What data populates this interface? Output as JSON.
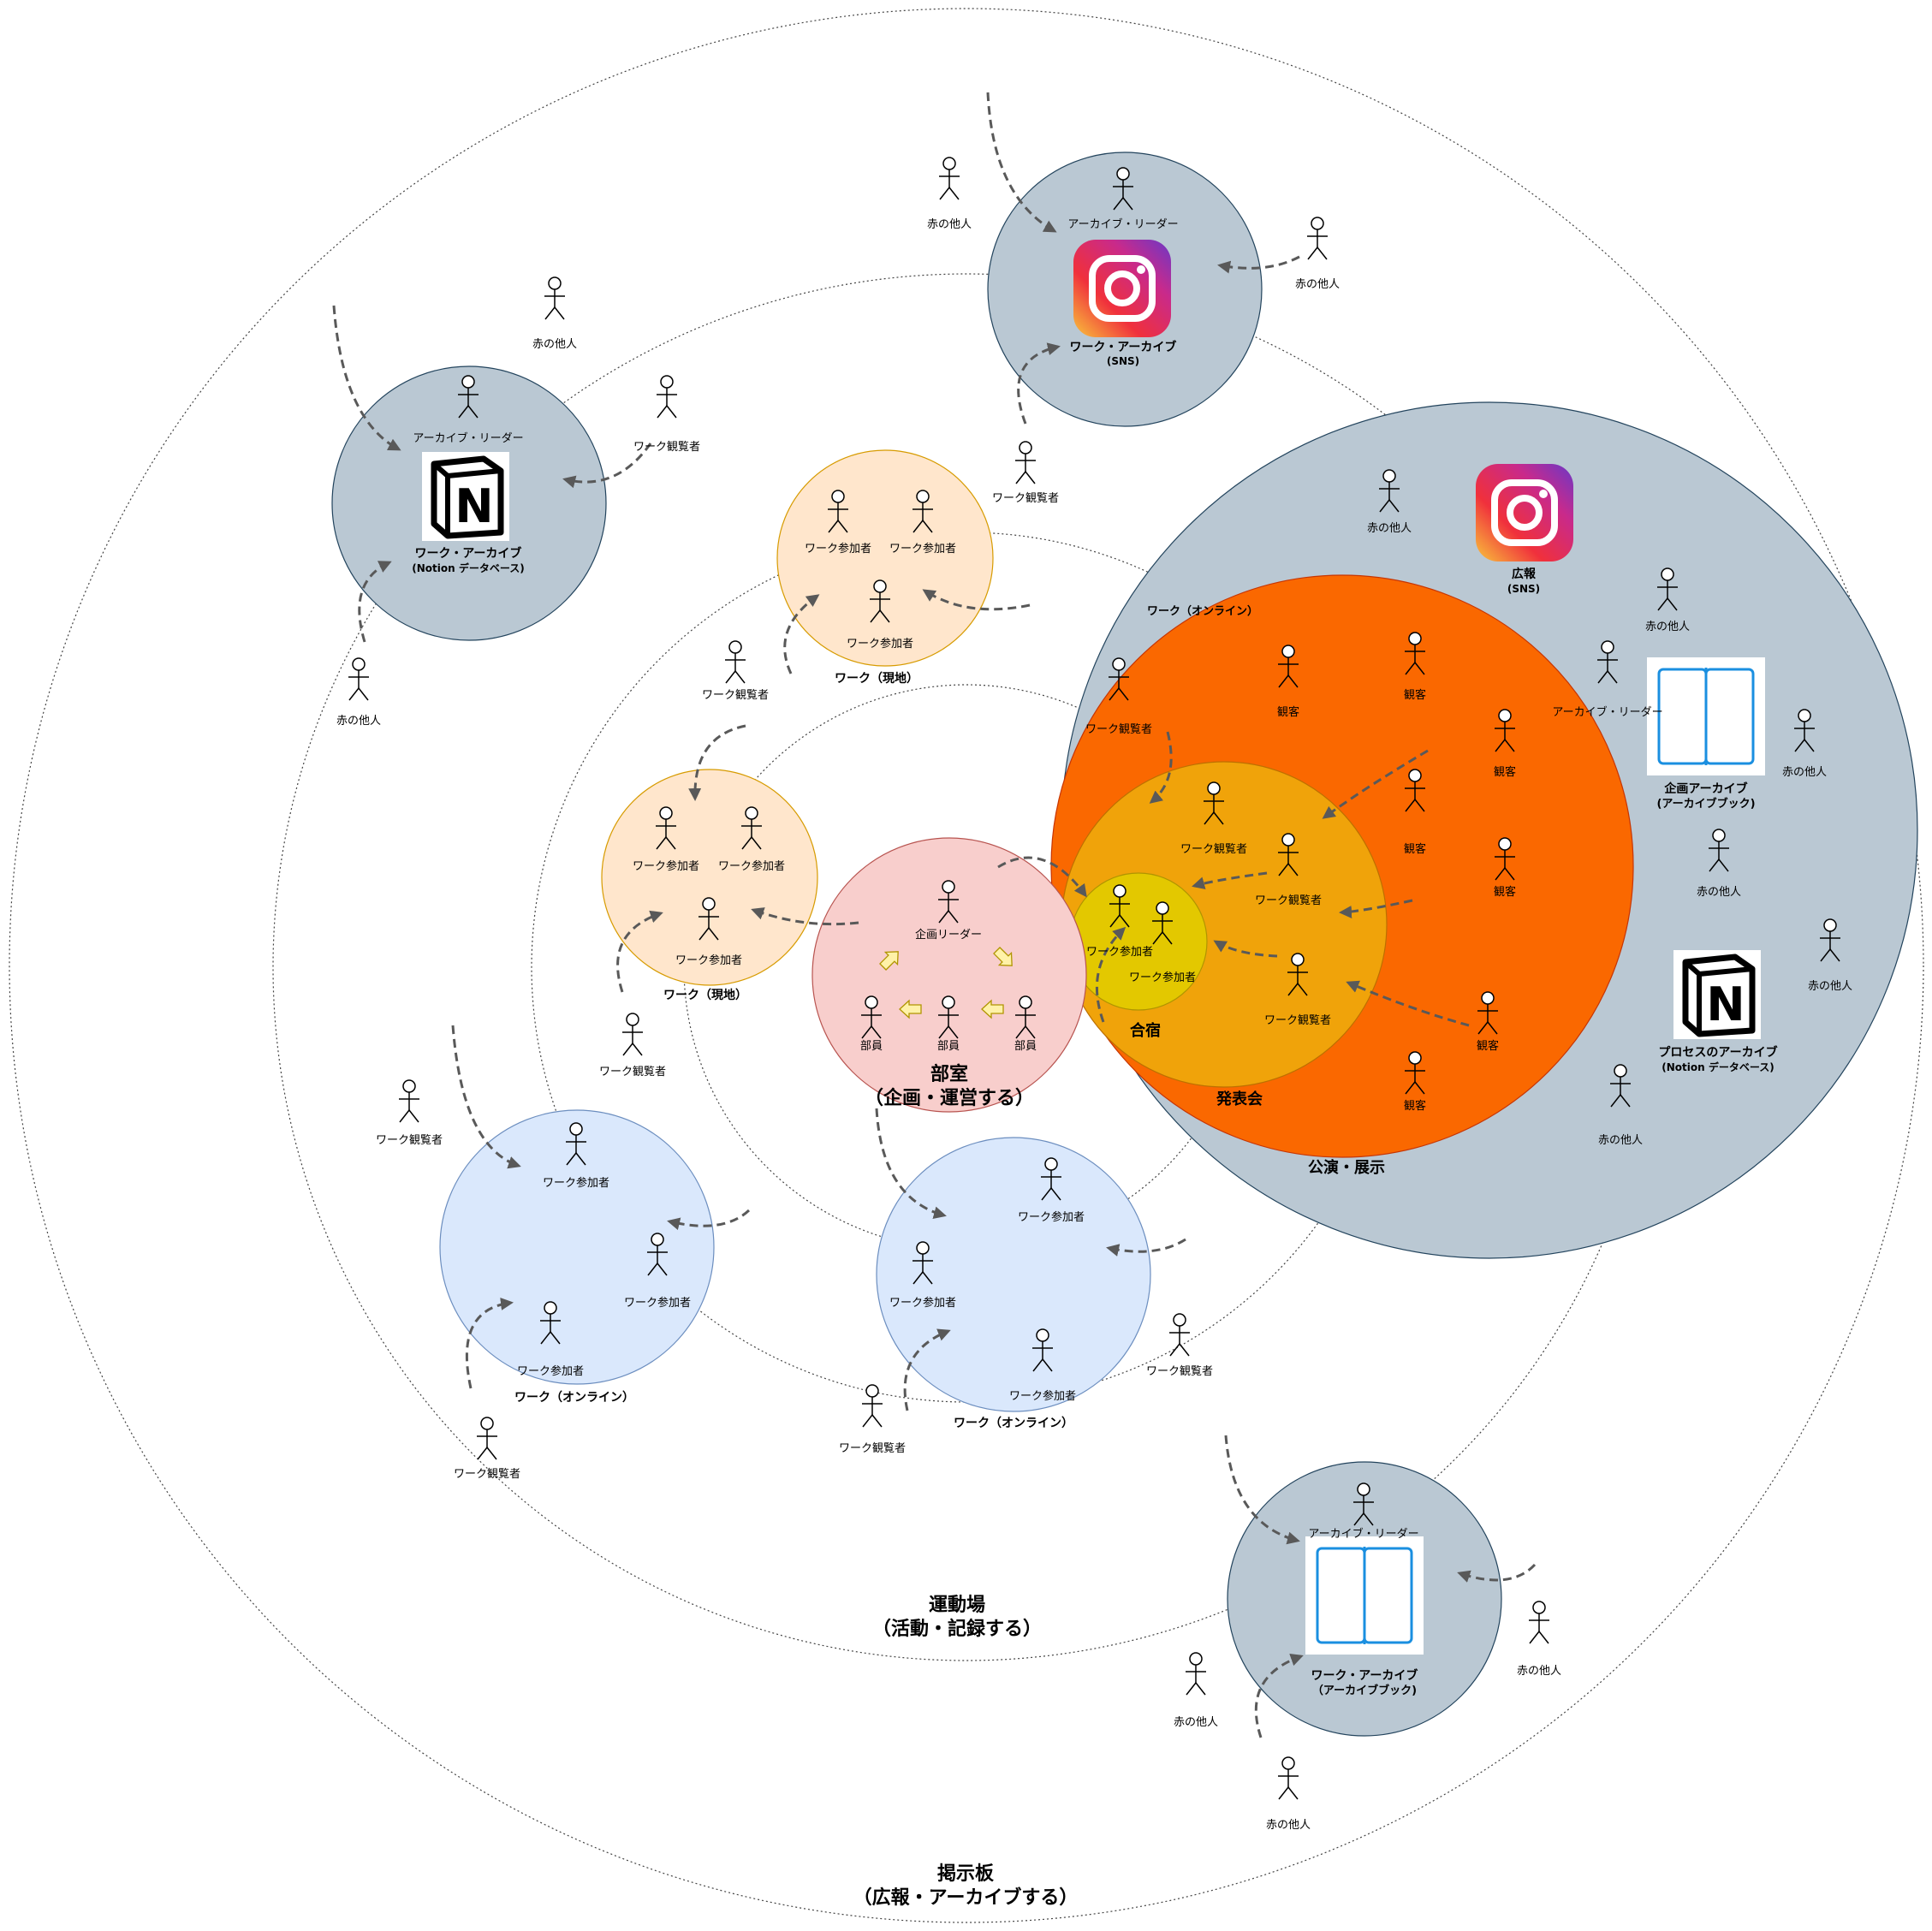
{
  "labels": {
    "keijiban": "掲示板",
    "keijiban_sub": "（広報・アーカイブする）",
    "undojo": "運動場",
    "undojo_sub": "（活動・記録する）",
    "bushitsu": "部室",
    "bushitsu_sub": "（企画・運営する）",
    "koen": "公演・展示",
    "happyo": "発表会",
    "gasshuku": "合宿",
    "work_online": "ワーク（オンライン）",
    "work_genchi": "ワーク（現地）",
    "work_archive": "ワーク・アーカイブ",
    "sns": "(SNS)",
    "notion_db": "(Notion データベース)",
    "notion_db2": "(Notion データベース)",
    "archive_book": "(アーカイブブック)",
    "archive_book2": "（アーカイブブック)",
    "koho": "広報",
    "kikaku_archive": "企画アーカイブ",
    "process_archive": "プロセスのアーカイブ"
  },
  "roles": {
    "archive_reader": "アーカイブ・リーダー",
    "stranger": "赤の他人",
    "viewer": "ワーク観覧者",
    "participant": "ワーク参加者",
    "leader": "企画リーダー",
    "member": "部員",
    "audience": "観客"
  },
  "colors": {
    "archive": "#bac8d3",
    "work_genchi": "#ffe6cc",
    "work_online": "#dae8fc",
    "bushitsu": "#f8cecc",
    "koen": "#fa6800",
    "happyo": "#f0a30a",
    "gasshuku": "#e3c800",
    "book_blue": "#1a8fe0"
  }
}
